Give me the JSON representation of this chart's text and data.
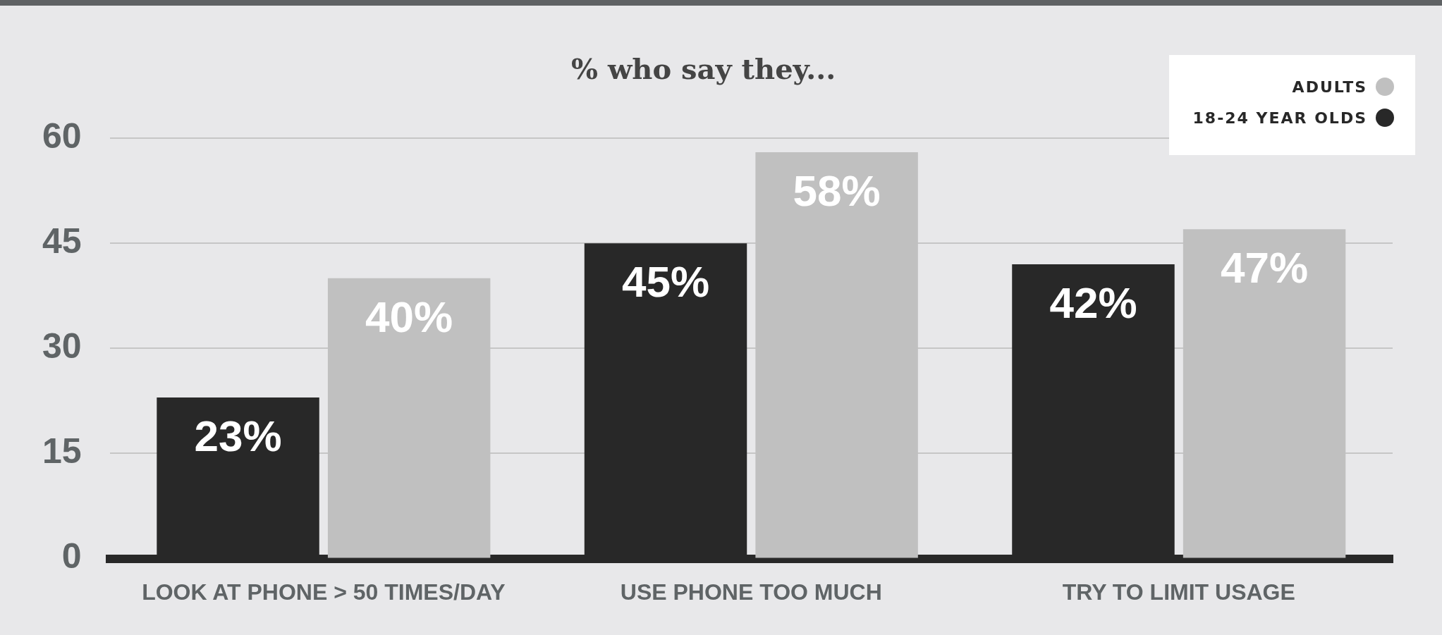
{
  "chart_data": {
    "type": "bar",
    "title": "% who say they...",
    "categories": [
      "LOOK AT PHONE > 50 TIMES/DAY",
      "USE PHONE TOO MUCH",
      "TRY TO LIMIT USAGE"
    ],
    "series": [
      {
        "name": "18-24 YEAR OLDS",
        "color": "#282828",
        "values": [
          23,
          45,
          42
        ],
        "value_labels": [
          "23%",
          "45%",
          "42%"
        ]
      },
      {
        "name": "ADULTS",
        "color": "#c0c0c0",
        "values": [
          40,
          58,
          47
        ],
        "value_labels": [
          "40%",
          "58%",
          "47%"
        ]
      }
    ],
    "ylim": [
      0,
      60
    ],
    "yticks": [
      0,
      15,
      30,
      45,
      60
    ],
    "grid": "y",
    "legend": "top right"
  }
}
